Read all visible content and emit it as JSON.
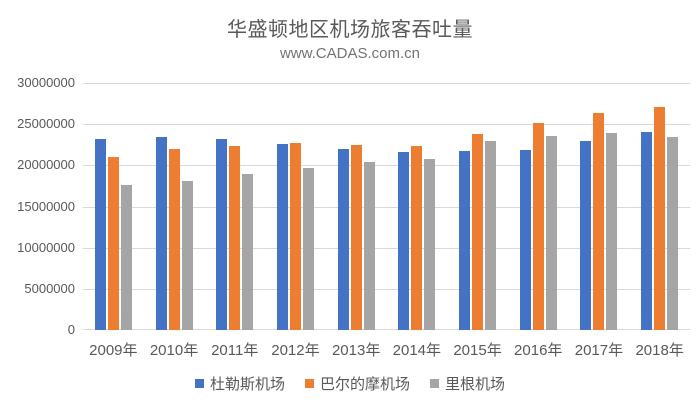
{
  "chart": {
    "title": "华盛顿地区机场旅客吞吐量",
    "subtitle": "www.CADAS.com.cn"
  },
  "chart_data": {
    "type": "bar",
    "title": "华盛顿地区机场旅客吞吐量",
    "subtitle": "www.CADAS.com.cn",
    "categories": [
      "2009年",
      "2010年",
      "2011年",
      "2012年",
      "2013年",
      "2014年",
      "2015年",
      "2016年",
      "2017年",
      "2018年"
    ],
    "series": [
      {
        "key": "dulles",
        "name": "杜勒斯机场",
        "color": "#4472C4",
        "values": [
          23200000,
          23500000,
          23200000,
          22600000,
          22000000,
          21600000,
          21700000,
          21900000,
          22900000,
          24000000
        ]
      },
      {
        "key": "baltimore",
        "name": "巴尔的摩机场",
        "color": "#ED7D31",
        "values": [
          21000000,
          22000000,
          22400000,
          22700000,
          22500000,
          22300000,
          23800000,
          25100000,
          26400000,
          27100000
        ]
      },
      {
        "key": "reagan",
        "name": "里根机场",
        "color": "#A5A5A5",
        "values": [
          17600000,
          18100000,
          18900000,
          19700000,
          20400000,
          20800000,
          23000000,
          23600000,
          23900000,
          23500000
        ]
      }
    ],
    "xlabel": "",
    "ylabel": "",
    "ylim": [
      0,
      30000000
    ],
    "ytick_step": 5000000,
    "ytick_labels": [
      "0",
      "5000000",
      "10000000",
      "15000000",
      "20000000",
      "25000000",
      "30000000"
    ],
    "grid": true,
    "gridline_color": "#d9d9d9",
    "axis_text_color": "#595959",
    "legend_position": "bottom"
  }
}
